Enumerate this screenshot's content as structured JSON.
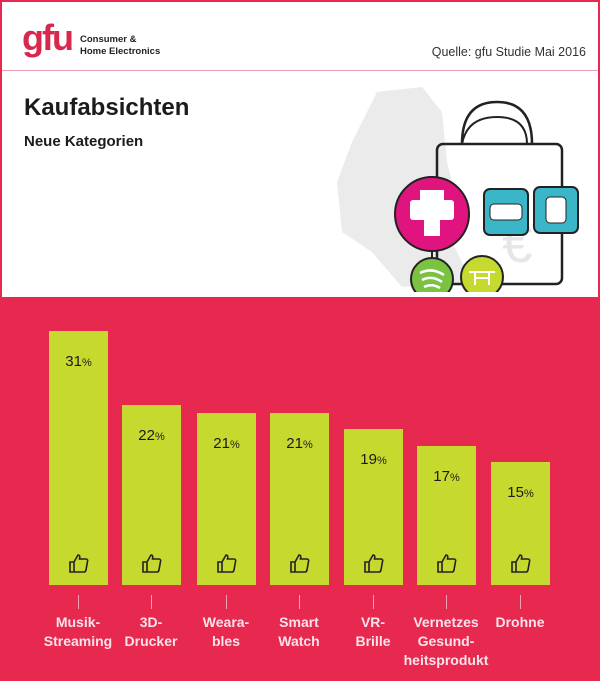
{
  "header": {
    "logo": "gfu",
    "logo_subtitle_1": "Consumer &",
    "logo_subtitle_2": "Home Electronics",
    "source": "Quelle: gfu Studie Mai 2016"
  },
  "title": "Kaufabsichten",
  "subtitle": "Neue Kategorien",
  "colors": {
    "background": "#e8294f",
    "bar": "#c6d92f",
    "printer_circle": "#e0147f",
    "device_squares": "#3bb6c9",
    "spotify_circle": "#7cc242",
    "drone_circle": "#c6d92f"
  },
  "chart_data": {
    "type": "bar",
    "categories": [
      "Musik-\nStreaming",
      "3D-\nDrucker",
      "Weara-\nbles",
      "Smart\nWatch",
      "VR-\nBrille",
      "Vernetzes\nGesund-\nheitsprodukt",
      "Drohne"
    ],
    "values": [
      31,
      22,
      21,
      21,
      19,
      17,
      15
    ],
    "value_labels": [
      "31",
      "22",
      "21",
      "21",
      "19",
      "17",
      "15"
    ],
    "unit": "%",
    "bar_icon": "thumbs-up-icon",
    "ylim": [
      0,
      31
    ],
    "grid": false
  }
}
